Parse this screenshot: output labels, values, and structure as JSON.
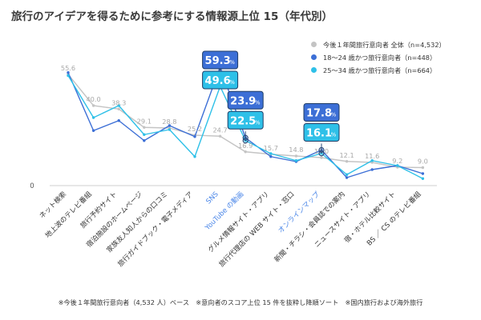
{
  "chart_data": {
    "type": "line",
    "title": "旅行のアイデアを得るために参考にする情報源上位 15（年代別）",
    "footnote": "※今後１年間旅行意向者（4,532 人）ベース　※意向者のスコア上位 15 件を抜粋し降順ソート　※国内旅行および海外旅行",
    "ylim": [
      0,
      65
    ],
    "y_ticks": [
      0
    ],
    "grid": false,
    "legend_position": "top-right",
    "categories": [
      "ネット検索",
      "地上波のテレビ番組",
      "旅行予約サイト",
      "宿泊施設のホームページ",
      "家族友人知人からの口コミ",
      "旅行ガイドブック・電子メディア",
      "SNS",
      "YouTube の動画",
      "グルメ情報サイト・アプリ",
      "旅行代理店の WEB サイト・窓口",
      "オンラインマップ",
      "新聞・チラシ・会員誌での案内",
      "ニュースサイト・アプリ",
      "宿・ホテル比較サイト",
      "BS ／ CS のテレビ番組"
    ],
    "highlighted_categories": [
      "SNS",
      "YouTube の動画",
      "オンラインマップ"
    ],
    "highlight_color": "#4a86e8",
    "series": [
      {
        "name": "今後１年間旅行意向者 全体（n=4,532）",
        "color": "#c4c4c4",
        "values": [
          55.6,
          40.0,
          38.3,
          29.1,
          28.8,
          25.2,
          24.7,
          16.9,
          15.7,
          14.8,
          14.0,
          12.1,
          11.6,
          9.2,
          9.0
        ]
      },
      {
        "name": "18～24 歳かつ旅行意向者（n=448）",
        "color": "#3c6fd6",
        "values": [
          56.5,
          27.5,
          32.5,
          22.5,
          30.0,
          24.5,
          59.3,
          23.9,
          14.5,
          12.0,
          17.8,
          4.0,
          8.0,
          10.0,
          6.0
        ]
      },
      {
        "name": "25～34 歳かつ旅行意向者（n=664）",
        "color": "#2ec0e8",
        "values": [
          55.0,
          34.0,
          40.0,
          25.5,
          28.0,
          14.5,
          49.6,
          22.5,
          16.0,
          12.5,
          16.1,
          5.5,
          12.5,
          10.0,
          3.5
        ]
      }
    ],
    "data_labels": [
      {
        "series": 0,
        "category": "ネット検索",
        "text": "55.6"
      },
      {
        "series": 0,
        "category": "地上波のテレビ番組",
        "text": "40.0"
      },
      {
        "series": 0,
        "category": "旅行予約サイト",
        "text": "38.3"
      },
      {
        "series": 0,
        "category": "宿泊施設のホームページ",
        "text": "29.1"
      },
      {
        "series": 0,
        "category": "家族友人知人からの口コミ",
        "text": "28.8"
      },
      {
        "series": 0,
        "category": "旅行ガイドブック・電子メディア",
        "text": "25.2"
      },
      {
        "series": 0,
        "category": "SNS",
        "text": "24.7"
      },
      {
        "series": 0,
        "category": "YouTube の動画",
        "text": "16.9"
      },
      {
        "series": 0,
        "category": "グルメ情報サイト・アプリ",
        "text": "15.7"
      },
      {
        "series": 0,
        "category": "旅行代理店の WEB サイト・窓口",
        "text": "14.8"
      },
      {
        "series": 0,
        "category": "オンラインマップ",
        "text": "14.0"
      },
      {
        "series": 0,
        "category": "新聞・チラシ・会員誌での案内",
        "text": "12.1"
      },
      {
        "series": 0,
        "category": "ニュースサイト・アプリ",
        "text": "11.6"
      },
      {
        "series": 0,
        "category": "宿・ホテル比較サイト",
        "text": "9.2"
      },
      {
        "series": 0,
        "category": "BS ／ CS のテレビ番組",
        "text": "9.0"
      }
    ],
    "callouts": [
      {
        "series": 1,
        "category": "SNS",
        "value": "59.3",
        "unit": "%"
      },
      {
        "series": 2,
        "category": "SNS",
        "value": "49.6",
        "unit": "%"
      },
      {
        "series": 1,
        "category": "YouTube の動画",
        "value": "23.9",
        "unit": "%"
      },
      {
        "series": 2,
        "category": "YouTube の動画",
        "value": "22.5",
        "unit": "%"
      },
      {
        "series": 1,
        "category": "オンラインマップ",
        "value": "17.8",
        "unit": "%"
      },
      {
        "series": 2,
        "category": "オンラインマップ",
        "value": "16.1",
        "unit": "%"
      }
    ]
  }
}
